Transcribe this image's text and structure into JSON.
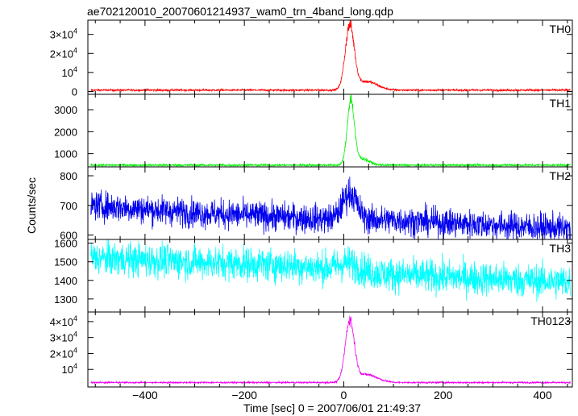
{
  "figure": {
    "title": "ae702120010_20070601214937_wam0_trn_4band_long.qdp",
    "xlabel": "Time [sec] 0 = 2007/06/01 21:49:37",
    "ylabel": "Counts/sec"
  },
  "chart_data": {
    "type": "line",
    "x": {
      "range": [
        -515,
        460
      ],
      "ticks": [
        -400,
        -200,
        0,
        200,
        400
      ],
      "tick_labels": [
        "−400",
        "−200",
        "0",
        "200",
        "400"
      ]
    },
    "panels": [
      {
        "name": "TH0",
        "color": "#ff0000",
        "ylim": [
          -1500,
          37500
        ],
        "ticks": [
          0,
          10000,
          20000,
          30000
        ],
        "tick_labels": [
          {
            "text": "0"
          },
          {
            "text": "10",
            "sup": "4"
          },
          {
            "text": "2×10",
            "sup": "4"
          },
          {
            "text": "3×10",
            "sup": "4"
          }
        ],
        "baseline": 700,
        "noise": 250,
        "peaks": [
          {
            "t": 12,
            "a": 33000,
            "w": 9
          },
          {
            "t": 45,
            "a": 4500,
            "w": 22
          }
        ]
      },
      {
        "name": "TH1",
        "color": "#00ee00",
        "ylim": [
          400,
          3700
        ],
        "ticks": [
          1000,
          2000,
          3000
        ],
        "tick_labels": [
          {
            "text": "1000"
          },
          {
            "text": "2000"
          },
          {
            "text": "3000"
          }
        ],
        "baseline": 480,
        "noise": 25,
        "peaks": [
          {
            "t": 14,
            "a": 2900,
            "w": 7
          },
          {
            "t": 35,
            "a": 300,
            "w": 15
          }
        ]
      },
      {
        "name": "TH2",
        "color": "#0000ee",
        "ylim": [
          585,
          830
        ],
        "ticks": [
          600,
          700,
          800
        ],
        "tick_labels": [
          {
            "text": "600"
          },
          {
            "text": "700"
          },
          {
            "text": "800"
          }
        ],
        "trend": [
          [
            -510,
            700
          ],
          [
            -300,
            675
          ],
          [
            -50,
            655
          ],
          [
            100,
            650
          ],
          [
            460,
            620
          ]
        ],
        "noise": 24,
        "peaks": [
          {
            "t": 12,
            "a": 90,
            "w": 14
          }
        ]
      },
      {
        "name": "TH3",
        "color": "#00ffff",
        "ylim": [
          1230,
          1620
        ],
        "ticks": [
          1300,
          1400,
          1500,
          1600
        ],
        "tick_labels": [
          {
            "text": "1300"
          },
          {
            "text": "1400"
          },
          {
            "text": "1500"
          },
          {
            "text": "1600"
          }
        ],
        "trend": [
          [
            -510,
            1520
          ],
          [
            -100,
            1480
          ],
          [
            100,
            1430
          ],
          [
            460,
            1390
          ]
        ],
        "noise": 45,
        "peaks": [
          {
            "t": 10,
            "a": 40,
            "w": 20
          }
        ]
      },
      {
        "name": "TH0123",
        "color": "#ee00ee",
        "ylim": [
          -1000,
          46000
        ],
        "ticks": [
          10000,
          20000,
          30000,
          40000
        ],
        "tick_labels": [
          {
            "text": "10",
            "sup": "4"
          },
          {
            "text": "2×10",
            "sup": "4"
          },
          {
            "text": "3×10",
            "sup": "4"
          },
          {
            "text": "4×10",
            "sup": "4"
          }
        ],
        "baseline": 1800,
        "noise": 250,
        "peaks": [
          {
            "t": 12,
            "a": 38000,
            "w": 9
          },
          {
            "t": 45,
            "a": 5000,
            "w": 22
          }
        ]
      }
    ]
  }
}
